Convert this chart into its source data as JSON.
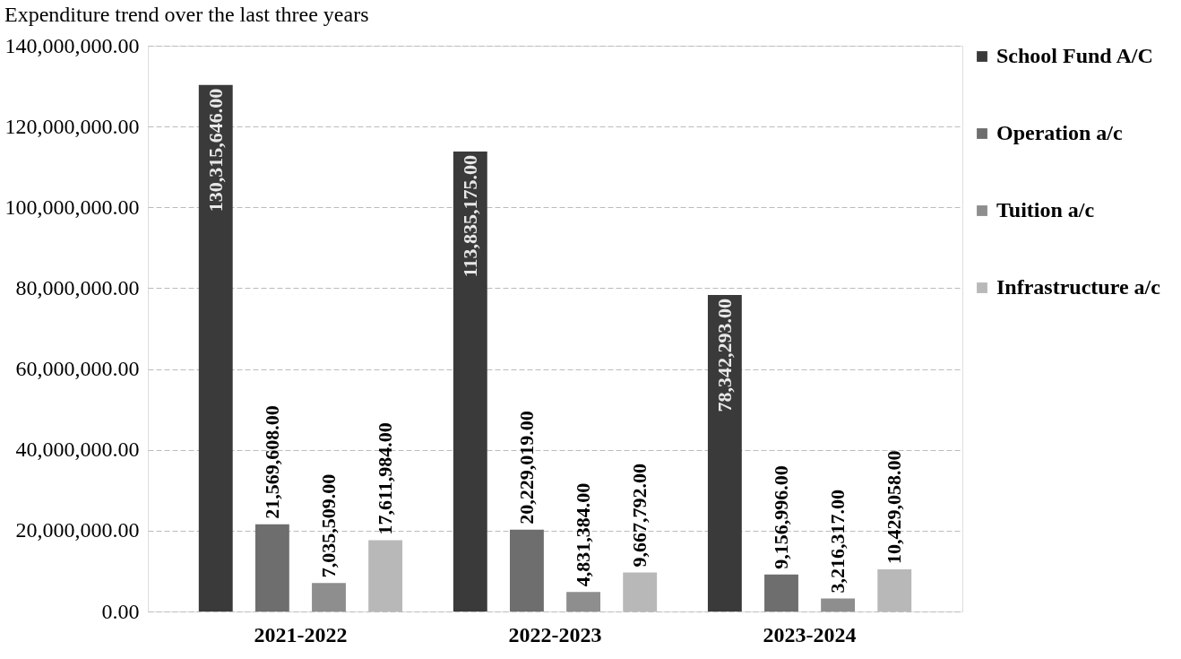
{
  "chart_data": {
    "type": "bar",
    "title": "Expenditure trend over the last three years",
    "categories": [
      "2021-2022",
      "2022-2023",
      "2023-2024"
    ],
    "series": [
      {
        "name": "School Fund A/C",
        "color": "#3a3a3a",
        "values": [
          130315646.0,
          113835175.0,
          78342293.0
        ],
        "value_labels": [
          "130,315,646.00",
          "113,835,175.00",
          "78,342,293.00"
        ]
      },
      {
        "name": "Operation a/c",
        "color": "#6e6e6e",
        "values": [
          21569608.0,
          20229019.0,
          9156996.0
        ],
        "value_labels": [
          "21,569,608.00",
          "20,229,019.00",
          "9,156,996.00"
        ]
      },
      {
        "name": "Tuition a/c",
        "color": "#8e8e8e",
        "values": [
          7035509.0,
          4831384.0,
          3216317.0
        ],
        "value_labels": [
          "7,035,509.00",
          "4,831,384.00",
          "3,216,317.00"
        ]
      },
      {
        "name": "Infrastructure a/c",
        "color": "#b8b8b8",
        "values": [
          17611984.0,
          9667792.0,
          10429058.0
        ],
        "value_labels": [
          "17,611,984.00",
          "9,667,792.00",
          "10,429,058.00"
        ]
      }
    ],
    "ylim": [
      0,
      140000000
    ],
    "yticks": [
      {
        "value": 0,
        "label": "0.00"
      },
      {
        "value": 20000000,
        "label": "20,000,000.00"
      },
      {
        "value": 40000000,
        "label": "40,000,000.00"
      },
      {
        "value": 60000000,
        "label": "60,000,000.00"
      },
      {
        "value": 80000000,
        "label": "80,000,000.00"
      },
      {
        "value": 100000000,
        "label": "100,000,000.00"
      },
      {
        "value": 120000000,
        "label": "120,000,000.00"
      },
      {
        "value": 140000000,
        "label": "140,000,000.00"
      }
    ],
    "grid": "y",
    "legend": "right"
  }
}
